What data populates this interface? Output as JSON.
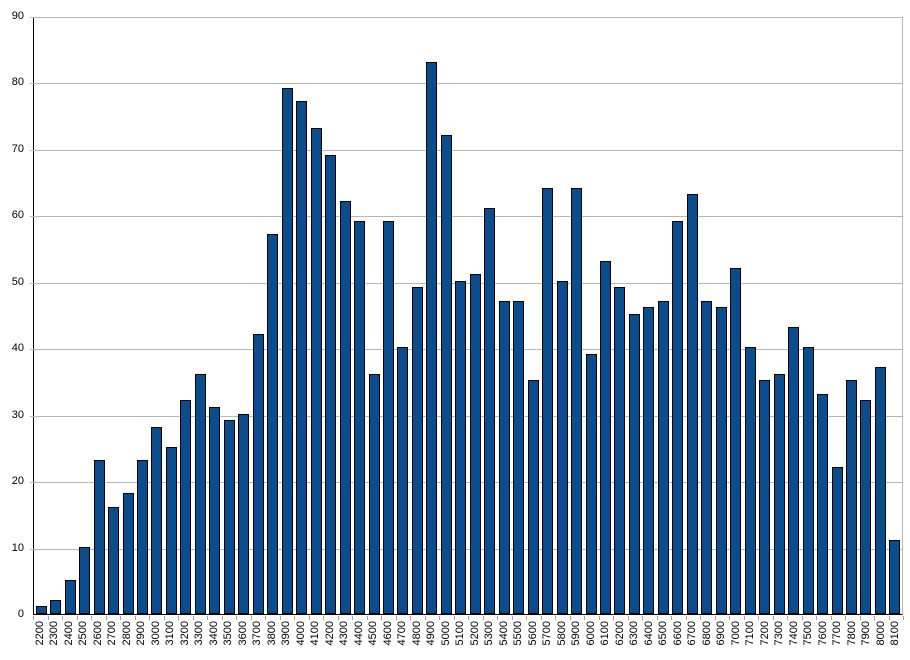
{
  "chart_data": {
    "type": "bar",
    "title": "",
    "xlabel": "",
    "ylabel": "",
    "legend": "none",
    "grid": "horizontal",
    "ylim": [
      0,
      90
    ],
    "y_ticks": [
      0,
      10,
      20,
      30,
      40,
      50,
      60,
      70,
      80,
      90
    ],
    "categories": [
      "2200",
      "2300",
      "2400",
      "2500",
      "2600",
      "2700",
      "2800",
      "2900",
      "3000",
      "3100",
      "3200",
      "3300",
      "3400",
      "3500",
      "3600",
      "3700",
      "3800",
      "3900",
      "4000",
      "4100",
      "4200",
      "4300",
      "4400",
      "4500",
      "4600",
      "4700",
      "4800",
      "4900",
      "5000",
      "5100",
      "5200",
      "5300",
      "5400",
      "5500",
      "5600",
      "5700",
      "5800",
      "5900",
      "6000",
      "6100",
      "6200",
      "6300",
      "6400",
      "6500",
      "6600",
      "6700",
      "6800",
      "6900",
      "7000",
      "7100",
      "7200",
      "7300",
      "7400",
      "7500",
      "7600",
      "7700",
      "7800",
      "7900",
      "8000",
      "8100"
    ],
    "values": [
      1,
      2,
      5,
      10,
      23,
      16,
      18,
      23,
      28,
      25,
      32,
      36,
      31,
      29,
      30,
      42,
      57,
      79,
      77,
      73,
      69,
      62,
      59,
      36,
      59,
      40,
      49,
      83,
      72,
      50,
      51,
      61,
      47,
      47,
      35,
      64,
      50,
      64,
      39,
      53,
      49,
      45,
      46,
      47,
      59,
      63,
      47,
      46,
      52,
      40,
      35,
      36,
      43,
      40,
      33,
      22,
      35,
      32,
      37,
      11
    ],
    "colors": {
      "bar_fill": "#0b4c8c",
      "bar_border": "#000000",
      "gridline": "#b8b8b8",
      "axis": "#000000",
      "tick": "#a3a3a3",
      "background": "#ffffff",
      "label_text": "#000000"
    }
  }
}
